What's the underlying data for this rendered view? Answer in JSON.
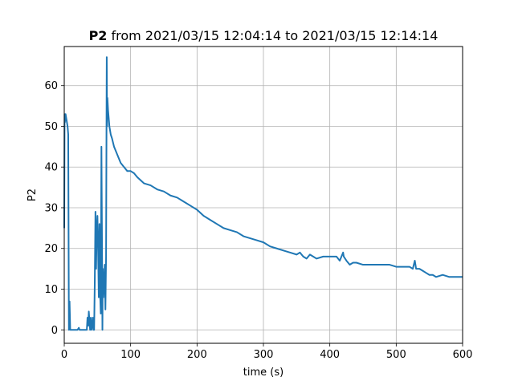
{
  "chart_data": {
    "type": "line",
    "title": {
      "bold": "P2",
      "rest": " from 2021/03/15 12:04:14 to 2021/03/15 12:14:14"
    },
    "xlabel": "time (s)",
    "ylabel": "P2",
    "xlim": [
      0,
      600
    ],
    "ylim": [
      -3.3,
      69.6
    ],
    "xticks": [
      0,
      100,
      200,
      300,
      400,
      500,
      600
    ],
    "yticks": [
      0,
      10,
      20,
      30,
      40,
      50,
      60
    ],
    "grid": true,
    "series": [
      {
        "color": "#1f77b4",
        "x": [
          0,
          0.5,
          1,
          2,
          3,
          4,
          5,
          6,
          7,
          8,
          9,
          10,
          11,
          15,
          20,
          22,
          23,
          24,
          28,
          30,
          34,
          35,
          36,
          37,
          38,
          39,
          40,
          41,
          42,
          43,
          44,
          45,
          46,
          47,
          48,
          49,
          50,
          51,
          52,
          53,
          54,
          55,
          56,
          57,
          57.5,
          58,
          59,
          60,
          61,
          62,
          63,
          64,
          64.5,
          65,
          66,
          67,
          68,
          70,
          72,
          75,
          80,
          85,
          90,
          95,
          100,
          105,
          110,
          120,
          130,
          140,
          150,
          160,
          170,
          180,
          190,
          200,
          210,
          220,
          230,
          240,
          250,
          260,
          270,
          280,
          290,
          300,
          310,
          320,
          330,
          340,
          350,
          355,
          360,
          365,
          370,
          375,
          380,
          390,
          400,
          410,
          415,
          420,
          421,
          425,
          430,
          435,
          440,
          450,
          460,
          470,
          480,
          490,
          500,
          510,
          520,
          525,
          528,
          530,
          535,
          540,
          545,
          550,
          555,
          560,
          570,
          580,
          590,
          600
        ],
        "y": [
          25,
          53,
          51,
          53,
          52,
          51,
          50,
          48,
          0,
          7,
          0,
          0,
          0,
          0,
          0,
          0.5,
          0,
          0,
          0,
          0,
          0,
          3,
          1,
          4.5,
          2,
          0,
          3,
          0,
          1,
          3,
          0,
          0,
          12,
          29,
          15,
          25,
          28,
          20,
          8,
          26,
          9,
          4,
          45,
          18,
          0,
          15,
          8,
          12,
          16,
          5,
          18,
          67,
          50,
          57,
          54,
          52,
          50,
          48,
          47,
          45,
          43,
          41,
          40,
          39,
          39,
          38.5,
          37.5,
          36,
          35.5,
          34.5,
          34,
          33,
          32.5,
          31.5,
          30.5,
          29.5,
          28,
          27,
          26,
          25,
          24.5,
          24,
          23,
          22.5,
          22,
          21.5,
          20.5,
          20,
          19.5,
          19,
          18.5,
          19,
          18,
          17.5,
          18.5,
          18,
          17.5,
          18,
          18,
          18,
          17,
          19,
          18,
          17,
          16,
          16.5,
          16.5,
          16,
          16,
          16,
          16,
          16,
          15.5,
          15.5,
          15.5,
          15,
          17,
          15,
          15,
          14.5,
          14,
          13.5,
          13.5,
          13,
          13.5,
          13,
          13,
          13
        ]
      }
    ]
  }
}
